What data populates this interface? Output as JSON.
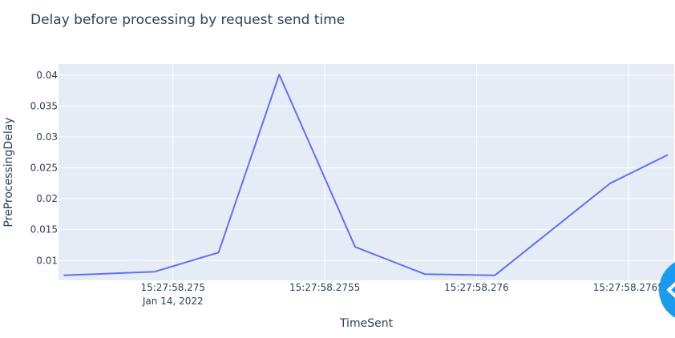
{
  "chart_data": {
    "type": "line",
    "title": "Delay before processing by request send time",
    "xlabel": "TimeSent",
    "ylabel": "PreProcessingDelay",
    "x_ticks": [
      {
        "label": "15:27:58.275",
        "sub": "Jan 14, 2022",
        "value": 0.0
      },
      {
        "label": "15:27:58.2755",
        "sub": "",
        "value": 0.5
      },
      {
        "label": "15:27:58.276",
        "sub": "",
        "value": 1.0
      },
      {
        "label": "15:27:58.2765",
        "sub": "",
        "value": 1.5
      }
    ],
    "y_ticks": [
      0.01,
      0.015,
      0.02,
      0.025,
      0.03,
      0.035,
      0.04
    ],
    "y_tick_labels": [
      "0.01",
      "0.015",
      "0.02",
      "0.025",
      "0.03",
      "0.035",
      "0.04"
    ],
    "x_range_ms": [
      -0.377,
      1.651
    ],
    "y_range": [
      0.0068,
      0.0418
    ],
    "grid": true,
    "colors": {
      "line": "#636efa",
      "plot_bg": "#e5ecf6",
      "grid": "#ffffff",
      "text": "#2a3f5f",
      "fab": "#1a9bf0"
    },
    "series": [
      {
        "x_ms": [
          -0.36,
          -0.06,
          0.15,
          0.35,
          0.6,
          0.83,
          1.06,
          1.44,
          1.63
        ],
        "y": [
          0.0076,
          0.0082,
          0.0113,
          0.0401,
          0.0122,
          0.0078,
          0.0076,
          0.0225,
          0.0271
        ]
      }
    ]
  },
  "fab": {
    "icon": "chevron-left-icon"
  }
}
